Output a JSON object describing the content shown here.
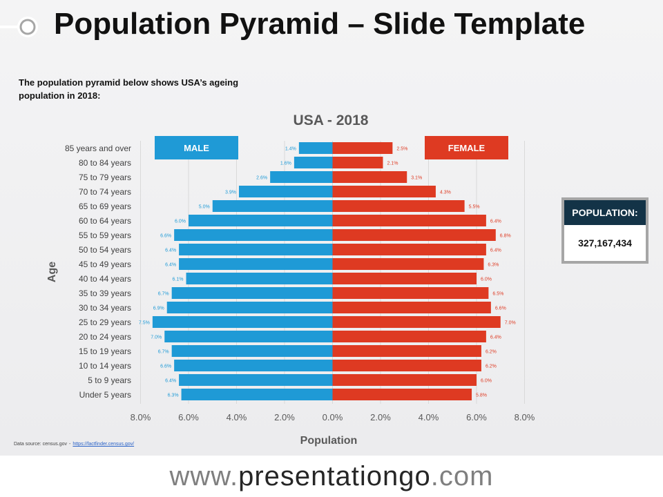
{
  "slide": {
    "title": "Population Pyramid – Slide Template",
    "subtitle": "The population pyramid below shows USA’s ageing population in 2018:",
    "source_label": "Data source: census.gov",
    "source_sep": "-",
    "source_link": "https://factfinder.census.gov/"
  },
  "population_box": {
    "heading": "POPULATION:",
    "value": "327,167,434"
  },
  "footer": {
    "prefix": "www.",
    "brand": "presentationgo",
    "suffix": ".com"
  },
  "colors": {
    "male": "#1f9ad6",
    "female": "#de3a22",
    "box_header": "#133347",
    "grid": "#d9d9d9"
  },
  "chart_data": {
    "type": "bar",
    "orientation": "horizontal",
    "title": "USA - 2018",
    "xlabel": "Population",
    "ylabel": "Age",
    "xlim": [
      -8,
      8
    ],
    "xticks": [
      -8,
      -6,
      -4,
      -2,
      0,
      2,
      4,
      6,
      8
    ],
    "xtick_labels": [
      "8.0%",
      "6.0%",
      "4.0%",
      "2.0%",
      "0.0%",
      "2.0%",
      "4.0%",
      "6.0%",
      "8.0%"
    ],
    "grid": "vertical",
    "categories": [
      "85 years and over",
      "80 to 84 years",
      "75 to 79 years",
      "70 to 74 years",
      "65 to 69 years",
      "60 to 64 years",
      "55 to 59 years",
      "50 to 54 years",
      "45 to 49 years",
      "40 to 44 years",
      "35 to 39 years",
      "30 to 34 years",
      "25 to 29 years",
      "20 to 24 years",
      "15 to 19 years",
      "10 to 14 years",
      "5 to 9 years",
      "Under 5 years"
    ],
    "series": [
      {
        "name": "MALE",
        "values": [
          1.4,
          1.6,
          2.6,
          3.9,
          5.0,
          6.0,
          6.6,
          6.4,
          6.4,
          6.1,
          6.7,
          6.9,
          7.5,
          7.0,
          6.7,
          6.6,
          6.4,
          6.3
        ],
        "labels": [
          "1.4%",
          "1.6%",
          "2.6%",
          "3.9%",
          "5.0%",
          "6.0%",
          "6.6%",
          "6.4%",
          "6.4%",
          "6.1%",
          "6.7%",
          "6.9%",
          "7.5%",
          "7.0%",
          "6.7%",
          "6.6%",
          "6.4%",
          "6.3%"
        ]
      },
      {
        "name": "FEMALE",
        "values": [
          2.5,
          2.1,
          3.1,
          4.3,
          5.5,
          6.4,
          6.8,
          6.4,
          6.3,
          6.0,
          6.5,
          6.6,
          7.0,
          6.4,
          6.2,
          6.2,
          6.0,
          5.8
        ],
        "labels": [
          "2.5%",
          "2.1%",
          "3.1%",
          "4.3%",
          "5.5%",
          "6.4%",
          "6.8%",
          "6.4%",
          "6.3%",
          "6.0%",
          "6.5%",
          "6.6%",
          "7.0%",
          "6.4%",
          "6.2%",
          "6.2%",
          "6.0%",
          "5.8%"
        ]
      }
    ]
  }
}
